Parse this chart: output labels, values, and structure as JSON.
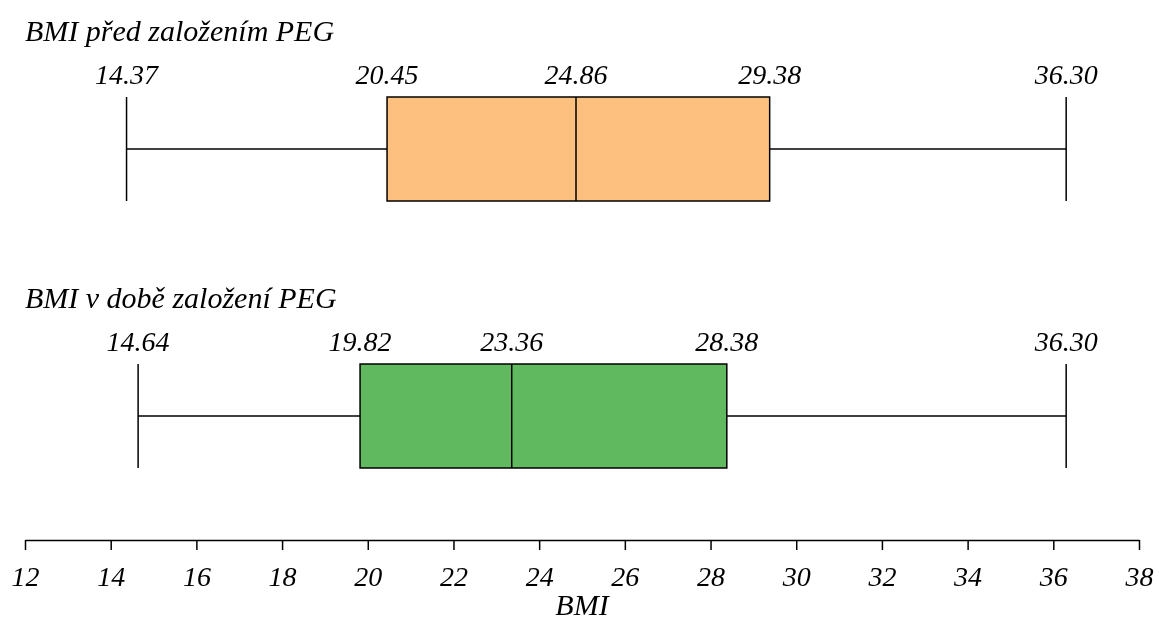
{
  "chart_data": {
    "type": "box",
    "orientation": "horizontal",
    "categories": [
      "BMI před založením PEG",
      "BMI v době založení PEG"
    ],
    "boxes": [
      {
        "low": 14.37,
        "q1": 20.45,
        "median": 24.86,
        "q3": 29.38,
        "high": 36.3
      },
      {
        "low": 14.64,
        "q1": 19.82,
        "median": 23.36,
        "q3": 28.38,
        "high": 36.3
      }
    ],
    "colors": [
      "#fdc07e",
      "#60b95f"
    ],
    "value_labels": [
      [
        "14.37",
        "20.45",
        "24.86",
        "29.38",
        "36.30"
      ],
      [
        "14.64",
        "19.82",
        "23.36",
        "28.38",
        "36.30"
      ]
    ],
    "xlabel": "BMI",
    "xlim": [
      12,
      38
    ],
    "xticks": [
      12,
      14,
      16,
      18,
      20,
      22,
      24,
      26,
      28,
      30,
      32,
      34,
      36,
      38
    ]
  }
}
